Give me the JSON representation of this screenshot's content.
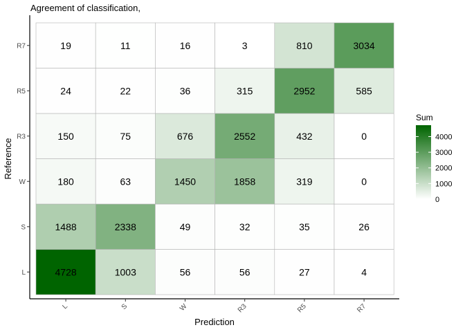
{
  "chart_data": {
    "type": "heatmap",
    "title": "Agreement of classification,",
    "xlabel": "Prediction",
    "ylabel": "Reference",
    "x_categories": [
      "L",
      "S",
      "W",
      "R3",
      "R5",
      "R7"
    ],
    "y_categories": [
      "L",
      "S",
      "W",
      "R3",
      "R5",
      "R7"
    ],
    "values": [
      [
        4728,
        1003,
        56,
        56,
        27,
        4
      ],
      [
        1488,
        2338,
        49,
        32,
        35,
        26
      ],
      [
        180,
        63,
        1450,
        1858,
        319,
        0
      ],
      [
        150,
        75,
        676,
        2552,
        432,
        0
      ],
      [
        24,
        22,
        36,
        315,
        2952,
        585
      ],
      [
        19,
        11,
        16,
        3,
        810,
        3034
      ]
    ],
    "color_range": [
      0,
      4728
    ],
    "color_low": "#ffffff",
    "color_high": "#006400",
    "legend": {
      "title": "Sum",
      "ticks": [
        0,
        1000,
        2000,
        3000,
        4000
      ],
      "placement": "right"
    }
  }
}
